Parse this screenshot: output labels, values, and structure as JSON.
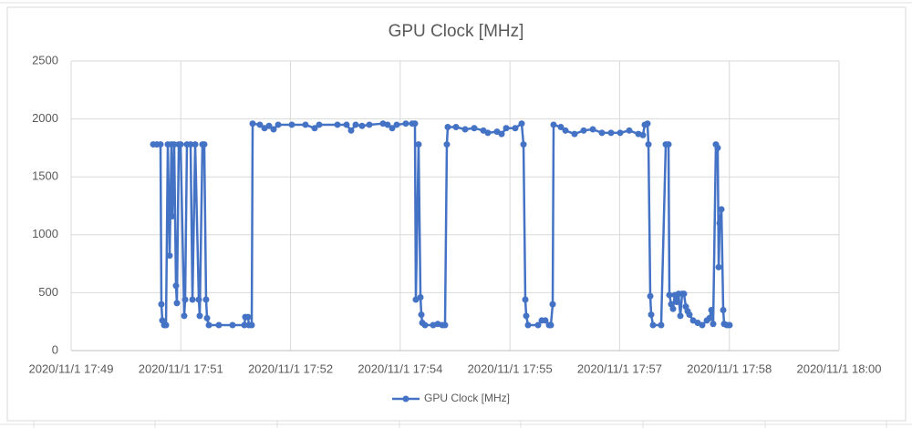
{
  "chart_data": {
    "type": "line",
    "title": "GPU Clock [MHz]",
    "series": [
      {
        "name": "GPU Clock [MHz]",
        "color": "#4472c4",
        "x": [
          1070.176,
          1070.228,
          1070.28,
          1070.293,
          1070.306,
          1070.333,
          1070.359,
          1070.385,
          1070.411,
          1070.437,
          1070.45,
          1070.476,
          1070.502,
          1070.515,
          1070.542,
          1070.568,
          1070.62,
          1070.633,
          1070.659,
          1070.711,
          1070.738,
          1070.777,
          1070.829,
          1070.842,
          1070.881,
          1070.907,
          1070.933,
          1070.947,
          1070.973,
          1071.116,
          1071.312,
          1071.482,
          1071.495,
          1071.534,
          1071.547,
          1071.587,
          1071.6,
          1071.704,
          1071.77,
          1071.835,
          1071.9,
          1071.966,
          1072.161,
          1072.357,
          1072.488,
          1072.553,
          1072.815,
          1072.945,
          1073.011,
          1073.076,
          1073.167,
          1073.272,
          1073.468,
          1073.533,
          1073.599,
          1073.664,
          1073.794,
          1073.886,
          1073.925,
          1073.938,
          1073.977,
          1074.004,
          1074.017,
          1074.03,
          1074.069,
          1074.186,
          1074.252,
          1074.317,
          1074.356,
          1074.382,
          1074.395,
          1074.513,
          1074.644,
          1074.774,
          1074.905,
          1074.97,
          1075.101,
          1075.166,
          1075.232,
          1075.362,
          1075.454,
          1075.48,
          1075.506,
          1075.519,
          1075.545,
          1075.689,
          1075.741,
          1075.793,
          1075.846,
          1075.872,
          1075.898,
          1075.911,
          1076.015,
          1076.081,
          1076.211,
          1076.342,
          1076.473,
          1076.603,
          1076.734,
          1076.865,
          1076.995,
          1077.126,
          1077.191,
          1077.217,
          1077.256,
          1077.27,
          1077.296,
          1077.309,
          1077.335,
          1077.452,
          1077.518,
          1077.557,
          1077.57,
          1077.596,
          1077.622,
          1077.648,
          1077.675,
          1077.701,
          1077.727,
          1077.753,
          1077.779,
          1077.805,
          1077.831,
          1077.857,
          1077.91,
          1077.975,
          1078.04,
          1078.106,
          1078.145,
          1078.171,
          1078.197,
          1078.236,
          1078.262,
          1078.276,
          1078.289,
          1078.315,
          1078.341,
          1078.354,
          1078.393,
          1078.432
        ],
        "values": [
          1780,
          1780,
          1780,
          400,
          260,
          220,
          220,
          1780,
          820,
          1780,
          1160,
          1780,
          560,
          410,
          1780,
          1780,
          300,
          440,
          1780,
          1780,
          440,
          1780,
          440,
          300,
          1780,
          1780,
          440,
          280,
          220,
          220,
          220,
          220,
          290,
          290,
          220,
          220,
          1960,
          1950,
          1920,
          1940,
          1910,
          1950,
          1950,
          1950,
          1920,
          1950,
          1950,
          1950,
          1900,
          1950,
          1940,
          1950,
          1960,
          1950,
          1920,
          1950,
          1960,
          1960,
          1960,
          440,
          1780,
          460,
          310,
          240,
          220,
          220,
          230,
          220,
          220,
          1780,
          1930,
          1930,
          1910,
          1920,
          1900,
          1880,
          1890,
          1870,
          1920,
          1920,
          1960,
          1780,
          440,
          300,
          220,
          220,
          260,
          260,
          220,
          220,
          400,
          1950,
          1930,
          1900,
          1870,
          1900,
          1910,
          1880,
          1880,
          1880,
          1900,
          1870,
          1860,
          1950,
          1960,
          1780,
          470,
          310,
          220,
          220,
          1780,
          1780,
          480,
          400,
          360,
          480,
          420,
          490,
          300,
          490,
          490,
          380,
          340,
          310,
          260,
          240,
          220,
          260,
          280,
          350,
          230,
          1780,
          1750,
          720,
          1100,
          1220,
          350,
          230,
          220,
          220
        ]
      }
    ],
    "xlim": [
      1069,
      1080
    ],
    "xticks": [
      {
        "value": 1069,
        "label": "2020/11/1 17:49"
      },
      {
        "value": 1070.571,
        "label": "2020/11/1 17:51"
      },
      {
        "value": 1072.143,
        "label": "2020/11/1 17:52"
      },
      {
        "value": 1073.714,
        "label": "2020/11/1 17:54"
      },
      {
        "value": 1075.286,
        "label": "2020/11/1 17:55"
      },
      {
        "value": 1076.857,
        "label": "2020/11/1 17:57"
      },
      {
        "value": 1078.429,
        "label": "2020/11/1 17:58"
      },
      {
        "value": 1080,
        "label": "2020/11/1 18:00"
      }
    ],
    "ylim": [
      0,
      2500
    ],
    "yticks": [
      0,
      500,
      1000,
      1500,
      2000,
      2500
    ],
    "grid": true,
    "legend": "bottom"
  }
}
